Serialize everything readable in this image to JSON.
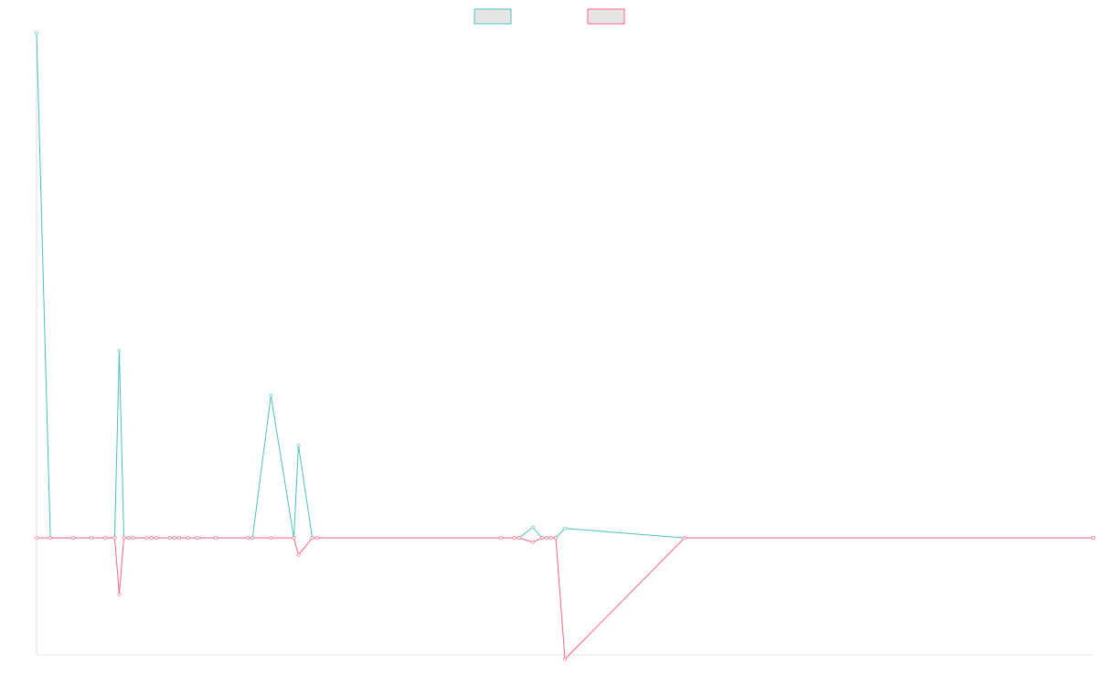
{
  "chart_data": {
    "type": "line",
    "title": "",
    "xlabel": "",
    "ylabel": "",
    "grid": false,
    "legend": {
      "position": "top-center"
    },
    "x": [
      0,
      3,
      8,
      12,
      15,
      17,
      18,
      19,
      20,
      21,
      24,
      25,
      26,
      29,
      30,
      31,
      33,
      35,
      39,
      46,
      47,
      51,
      56,
      57,
      60,
      61,
      101,
      104,
      105,
      108,
      110,
      111,
      112,
      113,
      115,
      141,
      230
    ],
    "xlim": [
      0,
      230
    ],
    "ylim": [
      -110,
      475
    ],
    "series": [
      {
        "color": "#4bc0c0",
        "values": [
          475,
          0,
          0,
          0,
          0,
          0,
          176,
          0,
          0,
          0,
          0,
          0,
          0,
          0,
          0,
          0,
          0,
          0,
          0,
          0,
          0,
          134,
          0,
          87,
          0,
          0,
          0,
          0,
          0,
          10,
          0,
          0,
          0,
          0,
          9,
          0,
          0
        ]
      },
      {
        "color": "#ff6384",
        "values": [
          0,
          0,
          0,
          0,
          0,
          0,
          -53,
          0,
          0,
          0,
          0,
          0,
          0,
          0,
          0,
          0,
          0,
          0,
          0,
          0,
          0,
          0,
          0,
          -16,
          0,
          0,
          0,
          0,
          0,
          -4,
          0,
          0,
          0,
          0,
          -114,
          0,
          0
        ]
      }
    ]
  }
}
